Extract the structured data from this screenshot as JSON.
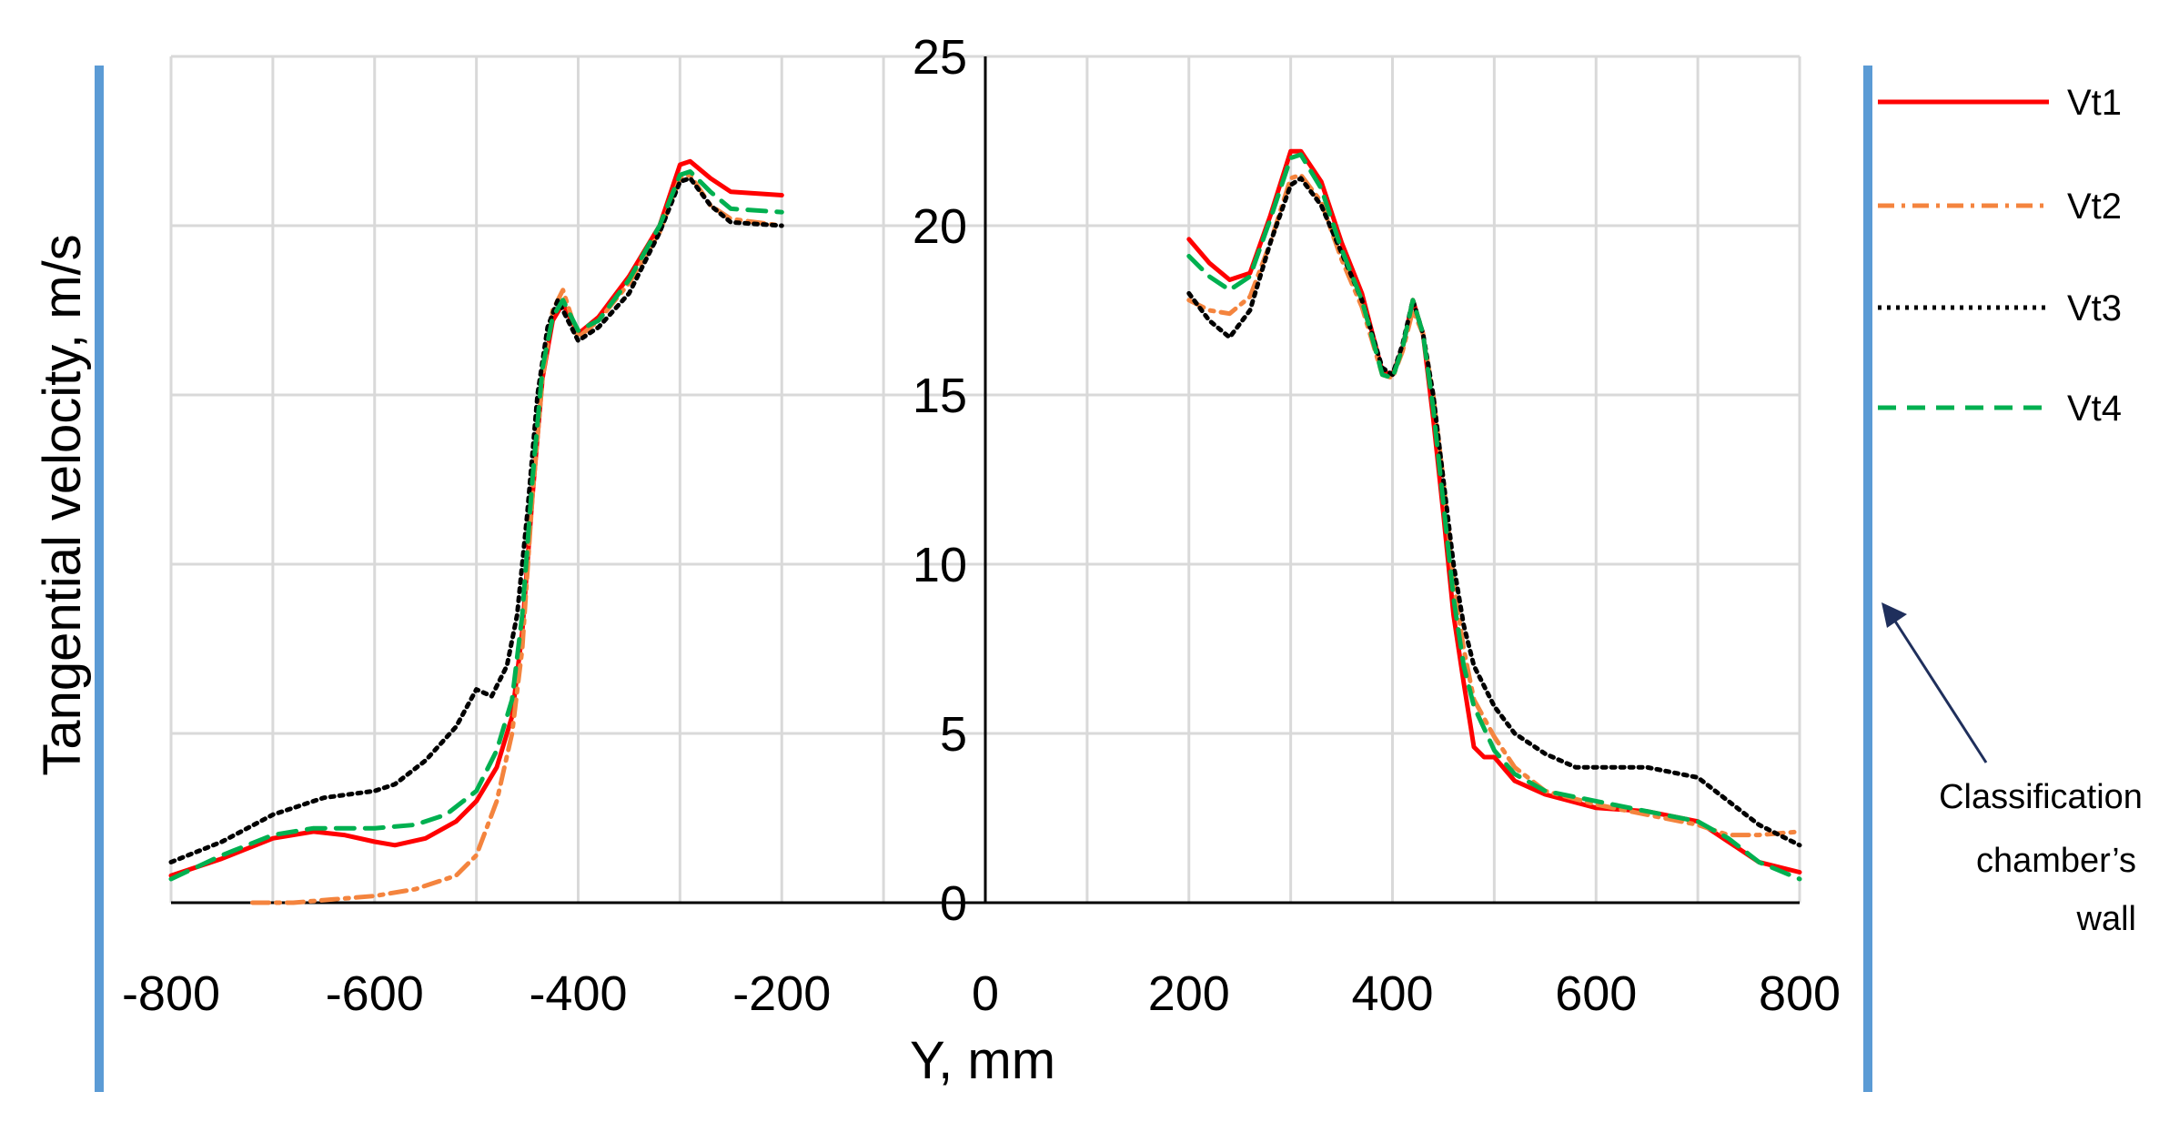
{
  "chart_data": {
    "type": "line",
    "title": "",
    "xlabel": "Y, mm",
    "ylabel": "Tangential velocity, m/s",
    "xlim": [
      -800,
      800
    ],
    "ylim": [
      0,
      25
    ],
    "x_ticks": [
      -800,
      -600,
      -400,
      -200,
      0,
      200,
      400,
      600,
      800
    ],
    "y_ticks": [
      0,
      5,
      10,
      15,
      20,
      25
    ],
    "grid": true,
    "legend_position": "right",
    "annotation": {
      "lines": [
        "Classification",
        "chamber’s",
        "wall"
      ],
      "wall_color": "#5B9BD5",
      "arrow_color": "#1F2F5C"
    },
    "series": [
      {
        "name": "Vt1",
        "color": "#FF0000",
        "dash": "solid",
        "segments": [
          [
            [
              -800,
              0.8
            ],
            [
              -750,
              1.3
            ],
            [
              -700,
              1.9
            ],
            [
              -660,
              2.1
            ],
            [
              -630,
              2.0
            ],
            [
              -600,
              1.8
            ],
            [
              -580,
              1.7
            ],
            [
              -550,
              1.9
            ],
            [
              -520,
              2.4
            ],
            [
              -500,
              3.0
            ],
            [
              -480,
              4.0
            ],
            [
              -465,
              5.5
            ],
            [
              -455,
              8.0
            ],
            [
              -445,
              12.0
            ],
            [
              -435,
              15.5
            ],
            [
              -425,
              17.2
            ],
            [
              -415,
              17.7
            ],
            [
              -400,
              16.8
            ],
            [
              -380,
              17.3
            ],
            [
              -350,
              18.5
            ],
            [
              -320,
              20.0
            ],
            [
              -300,
              21.8
            ],
            [
              -290,
              21.9
            ],
            [
              -270,
              21.4
            ],
            [
              -250,
              21.0
            ],
            [
              -200,
              20.9
            ]
          ],
          [
            [
              200,
              19.6
            ],
            [
              220,
              18.9
            ],
            [
              240,
              18.4
            ],
            [
              260,
              18.6
            ],
            [
              280,
              20.3
            ],
            [
              300,
              22.2
            ],
            [
              310,
              22.2
            ],
            [
              330,
              21.3
            ],
            [
              350,
              19.5
            ],
            [
              370,
              18.0
            ],
            [
              390,
              15.7
            ],
            [
              400,
              15.6
            ],
            [
              410,
              16.4
            ],
            [
              420,
              17.8
            ],
            [
              430,
              16.8
            ],
            [
              440,
              14.3
            ],
            [
              450,
              11.5
            ],
            [
              460,
              8.5
            ],
            [
              470,
              6.5
            ],
            [
              480,
              4.6
            ],
            [
              490,
              4.3
            ],
            [
              500,
              4.3
            ],
            [
              520,
              3.6
            ],
            [
              550,
              3.2
            ],
            [
              600,
              2.8
            ],
            [
              650,
              2.7
            ],
            [
              700,
              2.4
            ],
            [
              730,
              1.8
            ],
            [
              760,
              1.2
            ],
            [
              800,
              0.9
            ]
          ]
        ]
      },
      {
        "name": "Vt2",
        "color": "#F4843E",
        "dash": "dashdot",
        "segments": [
          [
            [
              -720,
              0.0
            ],
            [
              -680,
              0.0
            ],
            [
              -640,
              0.1
            ],
            [
              -600,
              0.2
            ],
            [
              -560,
              0.4
            ],
            [
              -520,
              0.8
            ],
            [
              -500,
              1.4
            ],
            [
              -480,
              3.0
            ],
            [
              -465,
              5.0
            ],
            [
              -455,
              7.5
            ],
            [
              -445,
              12.0
            ],
            [
              -435,
              15.5
            ],
            [
              -425,
              17.5
            ],
            [
              -415,
              18.1
            ],
            [
              -400,
              16.7
            ],
            [
              -380,
              17.2
            ],
            [
              -350,
              18.3
            ],
            [
              -320,
              19.8
            ],
            [
              -300,
              21.4
            ],
            [
              -290,
              21.5
            ],
            [
              -270,
              20.6
            ],
            [
              -250,
              20.2
            ],
            [
              -200,
              20.0
            ]
          ],
          [
            [
              200,
              17.8
            ],
            [
              220,
              17.5
            ],
            [
              240,
              17.4
            ],
            [
              260,
              17.9
            ],
            [
              280,
              19.5
            ],
            [
              300,
              21.4
            ],
            [
              310,
              21.5
            ],
            [
              330,
              20.7
            ],
            [
              350,
              19.0
            ],
            [
              370,
              17.6
            ],
            [
              390,
              15.6
            ],
            [
              400,
              15.5
            ],
            [
              410,
              16.3
            ],
            [
              420,
              17.5
            ],
            [
              430,
              16.8
            ],
            [
              440,
              15.0
            ],
            [
              450,
              12.5
            ],
            [
              460,
              9.5
            ],
            [
              470,
              7.5
            ],
            [
              480,
              6.0
            ],
            [
              500,
              4.9
            ],
            [
              520,
              4.0
            ],
            [
              550,
              3.3
            ],
            [
              600,
              2.9
            ],
            [
              650,
              2.6
            ],
            [
              700,
              2.3
            ],
            [
              730,
              2.0
            ],
            [
              760,
              2.0
            ],
            [
              800,
              2.1
            ]
          ]
        ]
      },
      {
        "name": "Vt3",
        "color": "#000000",
        "dash": "dotted",
        "segments": [
          [
            [
              -800,
              1.2
            ],
            [
              -750,
              1.8
            ],
            [
              -700,
              2.6
            ],
            [
              -650,
              3.1
            ],
            [
              -600,
              3.3
            ],
            [
              -580,
              3.5
            ],
            [
              -550,
              4.2
            ],
            [
              -520,
              5.2
            ],
            [
              -500,
              6.3
            ],
            [
              -485,
              6.1
            ],
            [
              -470,
              7.0
            ],
            [
              -460,
              8.5
            ],
            [
              -450,
              11.5
            ],
            [
              -440,
              15.0
            ],
            [
              -430,
              17.0
            ],
            [
              -420,
              17.8
            ],
            [
              -410,
              17.2
            ],
            [
              -400,
              16.6
            ],
            [
              -380,
              17.0
            ],
            [
              -350,
              18.0
            ],
            [
              -320,
              19.8
            ],
            [
              -300,
              21.3
            ],
            [
              -290,
              21.4
            ],
            [
              -270,
              20.6
            ],
            [
              -250,
              20.1
            ],
            [
              -200,
              20.0
            ]
          ],
          [
            [
              200,
              18.0
            ],
            [
              220,
              17.2
            ],
            [
              240,
              16.7
            ],
            [
              260,
              17.5
            ],
            [
              280,
              19.5
            ],
            [
              300,
              21.2
            ],
            [
              310,
              21.4
            ],
            [
              330,
              20.6
            ],
            [
              350,
              19.2
            ],
            [
              370,
              17.8
            ],
            [
              390,
              15.8
            ],
            [
              400,
              15.6
            ],
            [
              410,
              16.5
            ],
            [
              420,
              17.8
            ],
            [
              430,
              16.8
            ],
            [
              440,
              15.0
            ],
            [
              450,
              12.5
            ],
            [
              460,
              10.0
            ],
            [
              470,
              8.2
            ],
            [
              480,
              7.0
            ],
            [
              500,
              5.8
            ],
            [
              520,
              5.0
            ],
            [
              550,
              4.4
            ],
            [
              580,
              4.0
            ],
            [
              600,
              4.0
            ],
            [
              650,
              4.0
            ],
            [
              700,
              3.7
            ],
            [
              730,
              3.0
            ],
            [
              760,
              2.3
            ],
            [
              800,
              1.7
            ]
          ]
        ]
      },
      {
        "name": "Vt4",
        "color": "#00B050",
        "dash": "dashed",
        "segments": [
          [
            [
              -800,
              0.7
            ],
            [
              -750,
              1.4
            ],
            [
              -700,
              2.0
            ],
            [
              -660,
              2.2
            ],
            [
              -630,
              2.2
            ],
            [
              -600,
              2.2
            ],
            [
              -560,
              2.3
            ],
            [
              -530,
              2.6
            ],
            [
              -500,
              3.3
            ],
            [
              -480,
              4.5
            ],
            [
              -465,
              6.0
            ],
            [
              -455,
              8.5
            ],
            [
              -445,
              12.5
            ],
            [
              -435,
              15.8
            ],
            [
              -425,
              17.3
            ],
            [
              -415,
              17.8
            ],
            [
              -400,
              16.9
            ],
            [
              -380,
              17.2
            ],
            [
              -350,
              18.4
            ],
            [
              -320,
              20.0
            ],
            [
              -300,
              21.5
            ],
            [
              -290,
              21.6
            ],
            [
              -270,
              21.0
            ],
            [
              -250,
              20.5
            ],
            [
              -200,
              20.4
            ]
          ],
          [
            [
              200,
              19.1
            ],
            [
              220,
              18.5
            ],
            [
              240,
              18.1
            ],
            [
              260,
              18.5
            ],
            [
              280,
              20.2
            ],
            [
              300,
              22.0
            ],
            [
              310,
              22.1
            ],
            [
              330,
              21.1
            ],
            [
              350,
              19.3
            ],
            [
              370,
              17.8
            ],
            [
              390,
              15.6
            ],
            [
              400,
              15.5
            ],
            [
              410,
              16.4
            ],
            [
              420,
              17.8
            ],
            [
              430,
              16.8
            ],
            [
              440,
              14.6
            ],
            [
              450,
              11.8
            ],
            [
              460,
              9.0
            ],
            [
              470,
              7.0
            ],
            [
              480,
              5.8
            ],
            [
              500,
              4.5
            ],
            [
              520,
              3.8
            ],
            [
              550,
              3.3
            ],
            [
              600,
              3.0
            ],
            [
              650,
              2.7
            ],
            [
              700,
              2.4
            ],
            [
              730,
              1.9
            ],
            [
              760,
              1.2
            ],
            [
              800,
              0.7
            ]
          ]
        ]
      }
    ]
  }
}
